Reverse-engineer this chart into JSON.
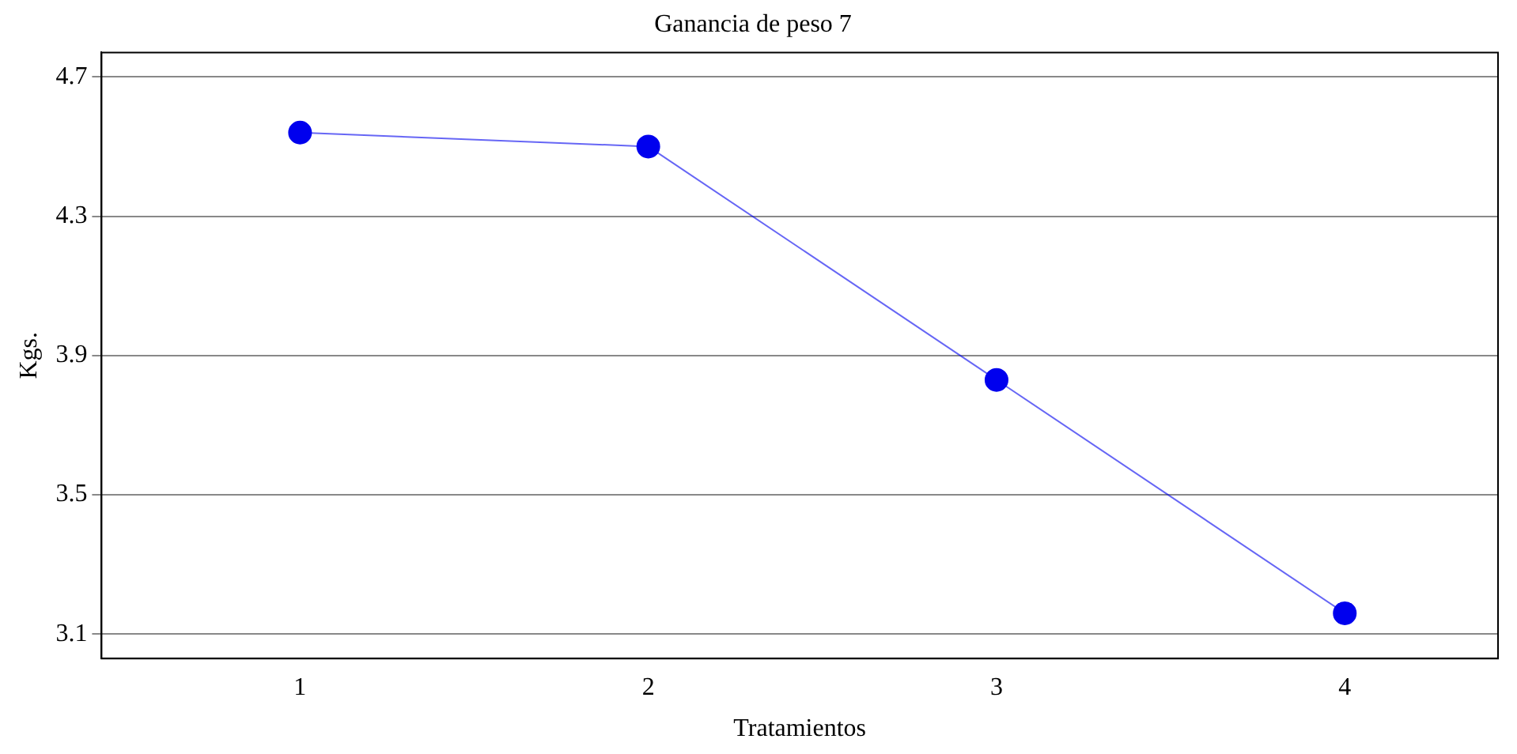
{
  "chart_data": {
    "type": "line",
    "title": "Ganancia de peso 7",
    "xlabel": "Tratamientos",
    "ylabel": "Kgs.",
    "x": [
      1,
      2,
      3,
      4
    ],
    "series": [
      {
        "color": "#0000ee",
        "values": [
          4.54,
          4.5,
          3.83,
          3.16
        ]
      }
    ],
    "xlim": [
      0.43,
      4.44
    ],
    "xticks": [
      1,
      2,
      3,
      4
    ],
    "ylim": [
      3.03,
      4.77
    ],
    "yticks": [
      3.1,
      3.5,
      3.9,
      4.3,
      4.7
    ],
    "grid": "y",
    "legend": false,
    "marker": "circle",
    "line_style": "solid"
  }
}
